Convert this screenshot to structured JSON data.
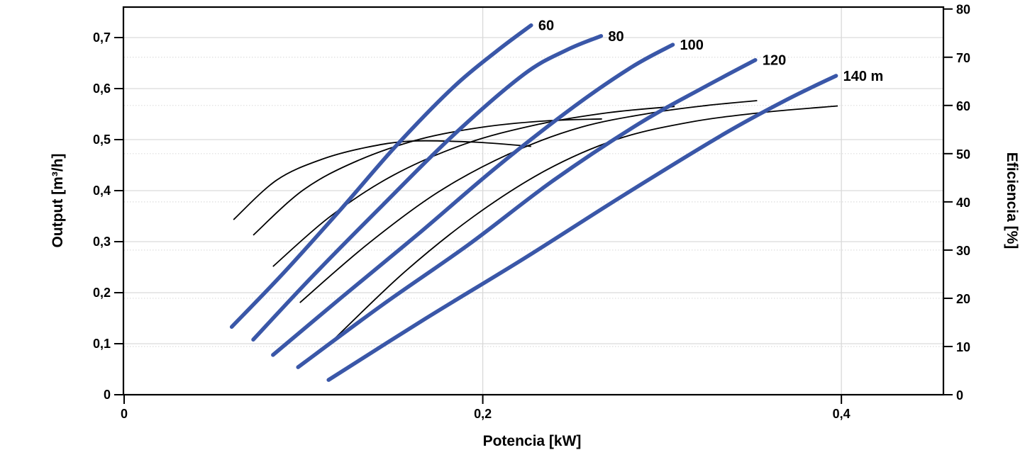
{
  "chart_data": {
    "type": "line",
    "title": "",
    "xlabel": "Potencia [kW]",
    "ylabel_left": "Output [m³/h]",
    "ylabel_right": "Eficiencia [%]",
    "xlim": [
      0,
      0.4565
    ],
    "ylim_left": [
      0,
      0.7597
    ],
    "ylim_right": [
      0,
      80.4
    ],
    "grid": {
      "major_color": "#d9d9d9",
      "minor_color": "#dedede",
      "axis_color": "#000000",
      "vertical_major_x": [
        0.2,
        0.4
      ]
    },
    "x_ticks": [
      {
        "v": 0,
        "label": "0"
      },
      {
        "v": 0.2,
        "label": "0,2"
      },
      {
        "v": 0.4,
        "label": "0,4"
      }
    ],
    "y_left_ticks": [
      {
        "v": 0,
        "label": "0"
      },
      {
        "v": 0.1,
        "label": "0,1"
      },
      {
        "v": 0.2,
        "label": "0,2"
      },
      {
        "v": 0.3,
        "label": "0,3"
      },
      {
        "v": 0.4,
        "label": "0,4"
      },
      {
        "v": 0.5,
        "label": "0,5"
      },
      {
        "v": 0.6,
        "label": "0,6"
      },
      {
        "v": 0.7,
        "label": "0,7"
      }
    ],
    "y_right_ticks": [
      {
        "v": 0,
        "label": "0"
      },
      {
        "v": 10,
        "label": "10"
      },
      {
        "v": 20,
        "label": "20"
      },
      {
        "v": 30,
        "label": "30"
      },
      {
        "v": 40,
        "label": "40"
      },
      {
        "v": 50,
        "label": "50"
      },
      {
        "v": 60,
        "label": "60"
      },
      {
        "v": 70,
        "label": "70"
      },
      {
        "v": 80,
        "label": "80"
      }
    ],
    "series": [
      {
        "name": "head-60",
        "label": "60",
        "kind": "head",
        "unit": "m",
        "axis": "left",
        "color": "#3A57A8",
        "width": 5.5,
        "points": [
          [
            0.06,
            0.133
          ],
          [
            0.089,
            0.239
          ],
          [
            0.121,
            0.364
          ],
          [
            0.152,
            0.489
          ],
          [
            0.184,
            0.604
          ],
          [
            0.208,
            0.674
          ],
          [
            0.227,
            0.724
          ]
        ]
      },
      {
        "name": "head-80",
        "label": "80",
        "kind": "head",
        "unit": "m",
        "axis": "left",
        "color": "#3A57A8",
        "width": 5.5,
        "points": [
          [
            0.072,
            0.108
          ],
          [
            0.105,
            0.232
          ],
          [
            0.144,
            0.371
          ],
          [
            0.184,
            0.51
          ],
          [
            0.223,
            0.628
          ],
          [
            0.247,
            0.676
          ],
          [
            0.266,
            0.703
          ]
        ]
      },
      {
        "name": "head-100",
        "label": "100",
        "kind": "head",
        "unit": "m",
        "axis": "left",
        "color": "#3A57A8",
        "width": 5.5,
        "points": [
          [
            0.083,
            0.078
          ],
          [
            0.121,
            0.19
          ],
          [
            0.164,
            0.315
          ],
          [
            0.208,
            0.447
          ],
          [
            0.251,
            0.565
          ],
          [
            0.283,
            0.642
          ],
          [
            0.306,
            0.686
          ]
        ]
      },
      {
        "name": "head-120",
        "label": "120",
        "kind": "head",
        "unit": "m",
        "axis": "left",
        "color": "#3A57A8",
        "width": 5.5,
        "points": [
          [
            0.097,
            0.054
          ],
          [
            0.144,
            0.176
          ],
          [
            0.192,
            0.294
          ],
          [
            0.239,
            0.419
          ],
          [
            0.287,
            0.531
          ],
          [
            0.322,
            0.6
          ],
          [
            0.352,
            0.656
          ]
        ]
      },
      {
        "name": "head-140",
        "label": "140 m",
        "kind": "head",
        "unit": "m",
        "axis": "left",
        "color": "#3A57A8",
        "width": 5.5,
        "points": [
          [
            0.114,
            0.029
          ],
          [
            0.168,
            0.149
          ],
          [
            0.223,
            0.267
          ],
          [
            0.279,
            0.392
          ],
          [
            0.334,
            0.51
          ],
          [
            0.37,
            0.579
          ],
          [
            0.397,
            0.625
          ]
        ]
      },
      {
        "name": "efficiency-60",
        "kind": "efficiency",
        "axis": "right",
        "color": "#000000",
        "width": 1.8,
        "points": [
          [
            0.061,
            36.3
          ],
          [
            0.085,
            44.5
          ],
          [
            0.11,
            48.8
          ],
          [
            0.135,
            51.3
          ],
          [
            0.16,
            52.6
          ],
          [
            0.195,
            52.4
          ],
          [
            0.227,
            51.5
          ]
        ]
      },
      {
        "name": "efficiency-80",
        "kind": "efficiency",
        "axis": "right",
        "color": "#000000",
        "width": 1.8,
        "points": [
          [
            0.072,
            33.1
          ],
          [
            0.1,
            42.5
          ],
          [
            0.13,
            48.5
          ],
          [
            0.165,
            53.0
          ],
          [
            0.2,
            55.5
          ],
          [
            0.235,
            56.8
          ],
          [
            0.2665,
            57.2
          ]
        ]
      },
      {
        "name": "efficiency-100",
        "kind": "efficiency",
        "axis": "right",
        "color": "#000000",
        "width": 1.8,
        "points": [
          [
            0.083,
            26.6
          ],
          [
            0.115,
            37.0
          ],
          [
            0.15,
            45.5
          ],
          [
            0.19,
            52.0
          ],
          [
            0.23,
            56.0
          ],
          [
            0.27,
            58.5
          ],
          [
            0.307,
            59.8
          ]
        ]
      },
      {
        "name": "efficiency-120",
        "kind": "efficiency",
        "axis": "right",
        "color": "#000000",
        "width": 1.8,
        "points": [
          [
            0.098,
            19.1
          ],
          [
            0.135,
            31.0
          ],
          [
            0.175,
            42.0
          ],
          [
            0.215,
            50.0
          ],
          [
            0.255,
            55.5
          ],
          [
            0.295,
            58.5
          ],
          [
            0.325,
            60.0
          ],
          [
            0.353,
            61.0
          ]
        ]
      },
      {
        "name": "efficiency-140",
        "kind": "efficiency",
        "axis": "right",
        "color": "#000000",
        "width": 1.8,
        "points": [
          [
            0.114,
            10.4
          ],
          [
            0.155,
            25.0
          ],
          [
            0.195,
            37.0
          ],
          [
            0.235,
            46.5
          ],
          [
            0.275,
            53.0
          ],
          [
            0.315,
            56.5
          ],
          [
            0.355,
            58.5
          ],
          [
            0.398,
            59.9
          ]
        ]
      }
    ]
  }
}
